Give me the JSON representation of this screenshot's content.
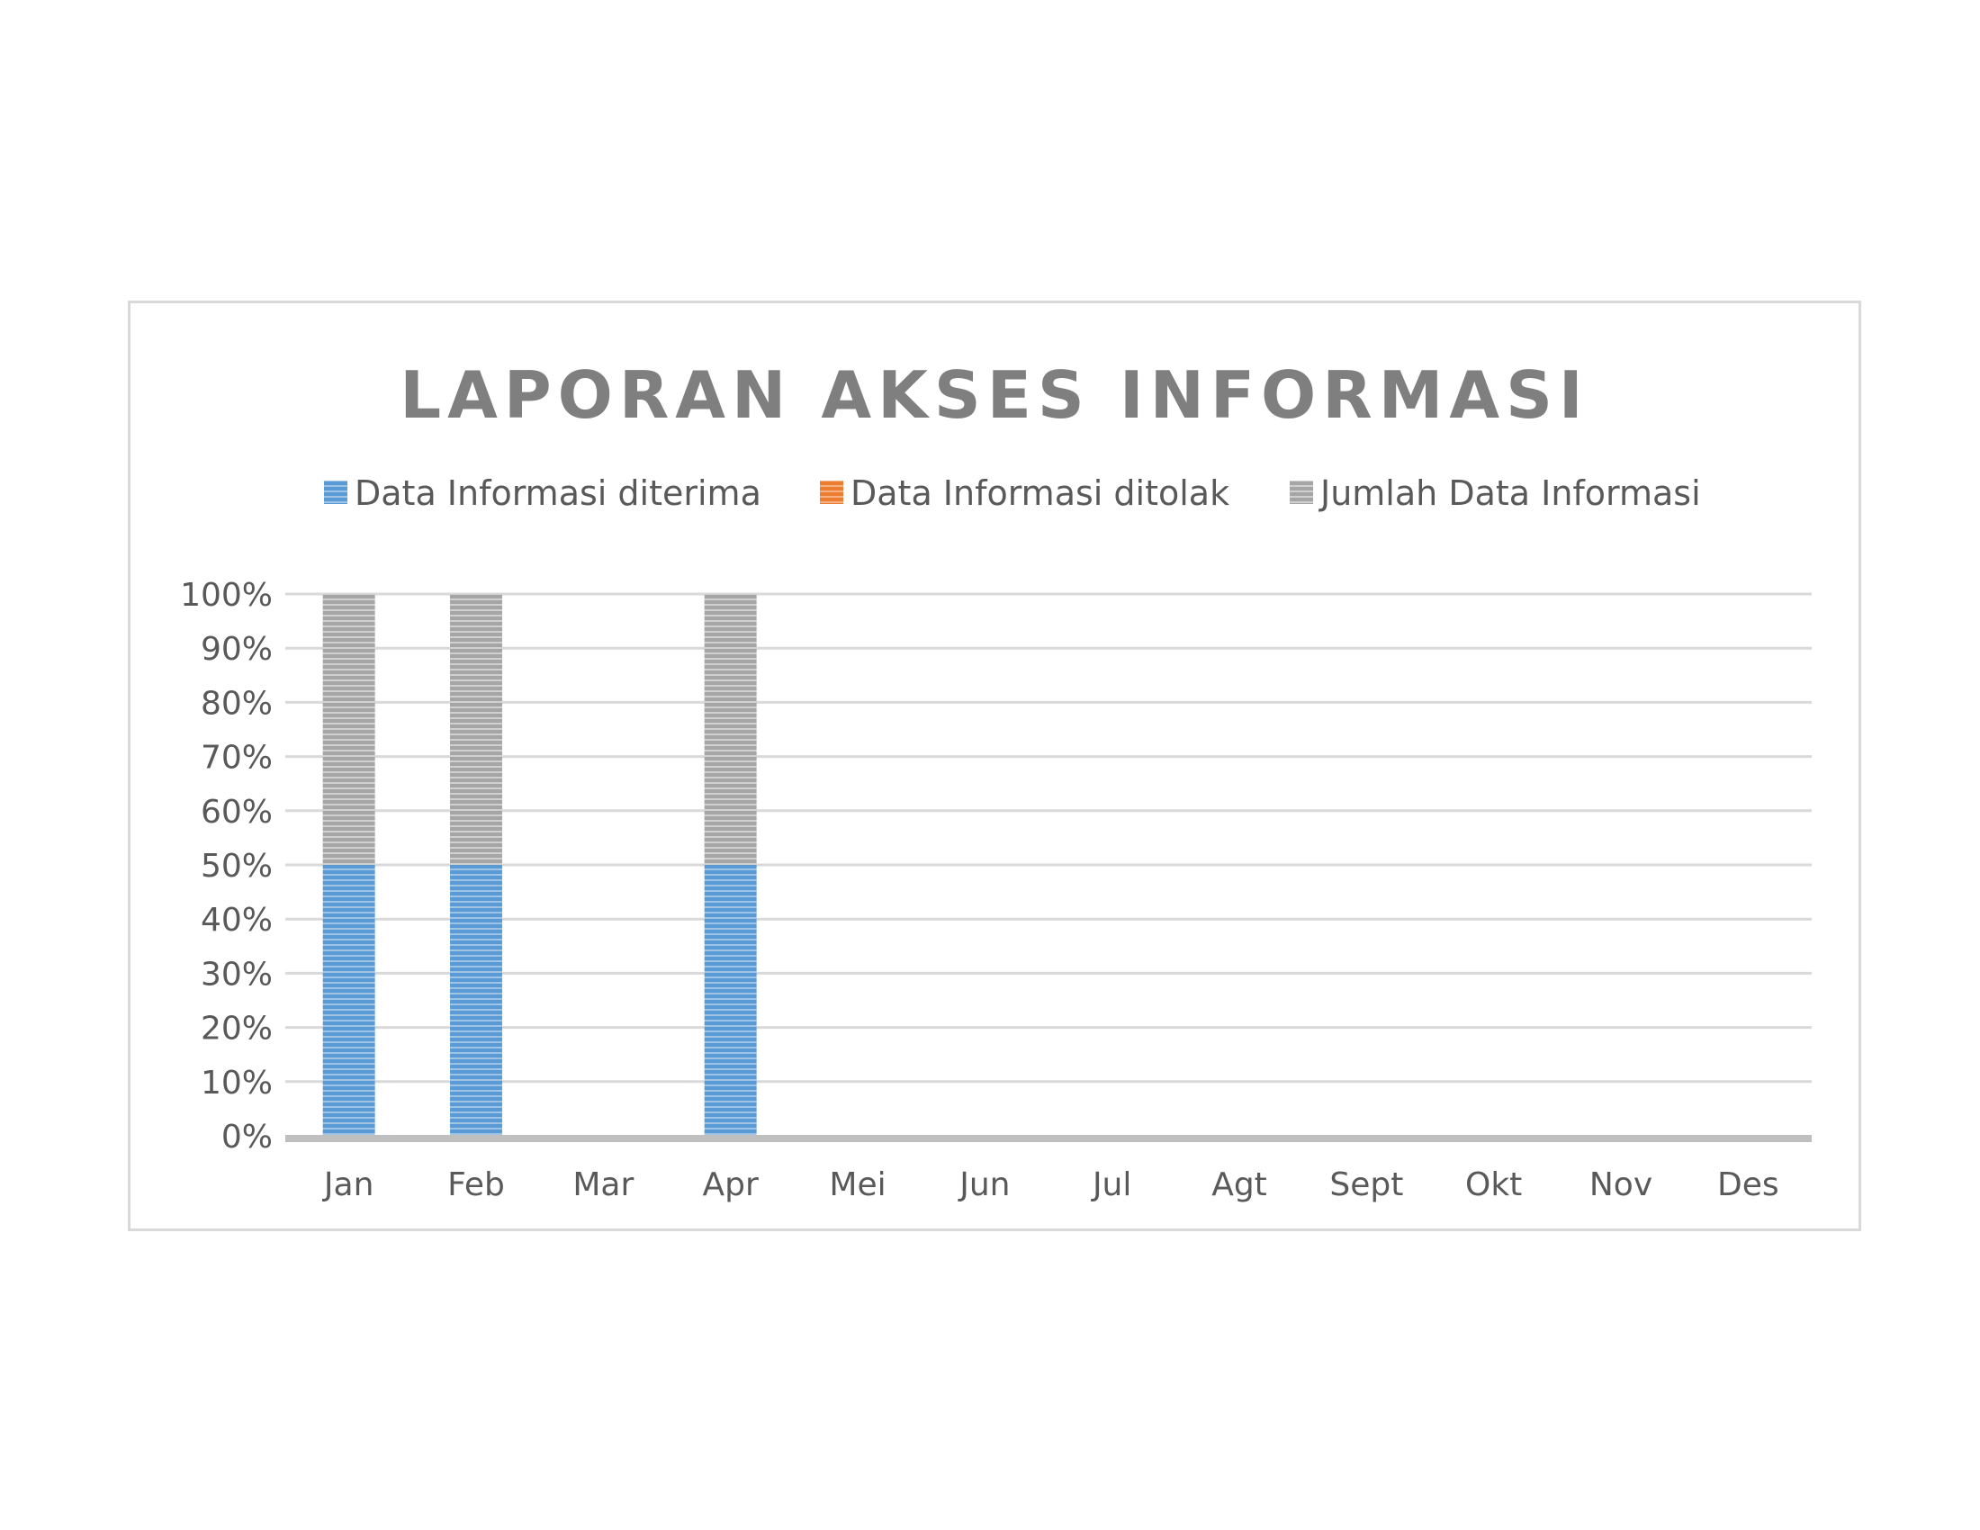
{
  "colors": {
    "diterima": "#5b9bd5",
    "ditolak": "#ed7d31",
    "jumlah": "#a5a5a5",
    "grid": "#d9d9d9",
    "text": "#595959",
    "title": "#7f7f7f"
  },
  "chart_data": {
    "type": "bar",
    "stacking": "percent",
    "title": "LAPORAN AKSES INFORMASI",
    "categories": [
      "Jan",
      "Feb",
      "Mar",
      "Apr",
      "Mei",
      "Jun",
      "Jul",
      "Agt",
      "Sept",
      "Okt",
      "Nov",
      "Des"
    ],
    "series": [
      {
        "name": "Data Informasi diterima",
        "color": "#5b9bd5",
        "values": [
          50,
          50,
          0,
          50,
          0,
          0,
          0,
          0,
          0,
          0,
          0,
          0
        ]
      },
      {
        "name": "Data Informasi ditolak",
        "color": "#ed7d31",
        "values": [
          0,
          0,
          0,
          0,
          0,
          0,
          0,
          0,
          0,
          0,
          0,
          0
        ]
      },
      {
        "name": "Jumlah Data Informasi",
        "color": "#a5a5a5",
        "values": [
          50,
          50,
          0,
          50,
          0,
          0,
          0,
          0,
          0,
          0,
          0,
          0
        ]
      }
    ],
    "yticks": [
      "0%",
      "10%",
      "20%",
      "30%",
      "40%",
      "50%",
      "60%",
      "70%",
      "80%",
      "90%",
      "100%"
    ],
    "ylim": [
      0,
      100
    ],
    "legend": "top",
    "grid": true
  }
}
